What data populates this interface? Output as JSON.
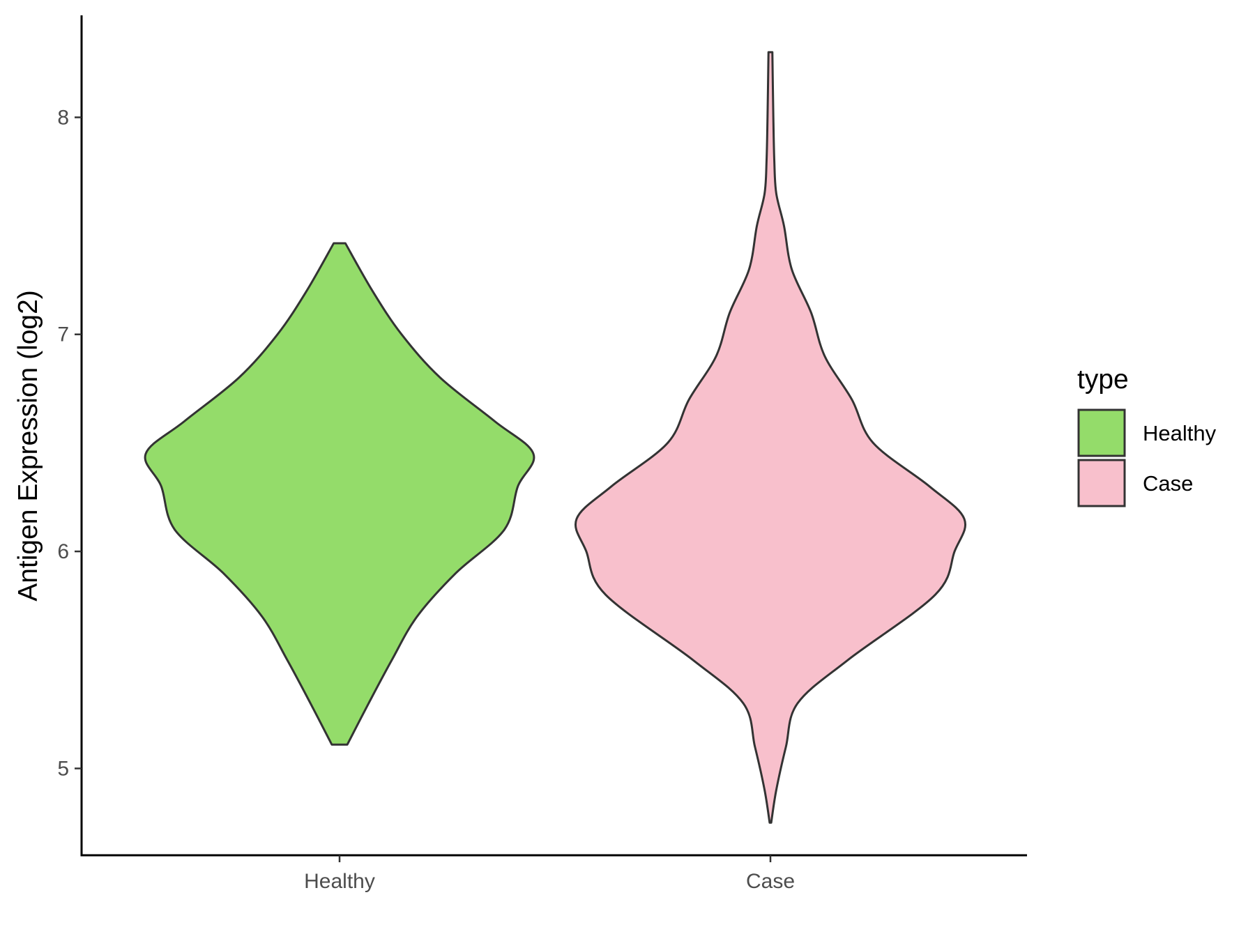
{
  "chart_data": {
    "type": "violin",
    "title": "",
    "xlabel": "",
    "ylabel": "Antigen Expression (log2)",
    "ylim": [
      4.6,
      8.47
    ],
    "yticks": [
      5,
      6,
      7,
      8
    ],
    "ytick_labels": [
      "5",
      "6",
      "7",
      "8"
    ],
    "categories": [
      "Healthy",
      "Case"
    ],
    "grid": false,
    "legend": {
      "title": "type",
      "position": "right",
      "entries": [
        "Healthy",
        "Case"
      ]
    },
    "series": [
      {
        "name": "Healthy",
        "color": "#94dc6a",
        "min": 5.11,
        "max": 7.42,
        "profile": [
          [
            5.11,
            0.04
          ],
          [
            5.3,
            0.15
          ],
          [
            5.5,
            0.27
          ],
          [
            5.7,
            0.4
          ],
          [
            5.9,
            0.6
          ],
          [
            6.1,
            0.85
          ],
          [
            6.3,
            0.92
          ],
          [
            6.45,
            1.0
          ],
          [
            6.6,
            0.8
          ],
          [
            6.8,
            0.52
          ],
          [
            7.0,
            0.32
          ],
          [
            7.2,
            0.17
          ],
          [
            7.42,
            0.03
          ]
        ]
      },
      {
        "name": "Case",
        "color": "#f8c0cc",
        "min": 4.75,
        "max": 8.3,
        "profile": [
          [
            4.75,
            0.004
          ],
          [
            4.9,
            0.03
          ],
          [
            5.1,
            0.08
          ],
          [
            5.3,
            0.14
          ],
          [
            5.5,
            0.4
          ],
          [
            5.8,
            0.85
          ],
          [
            6.0,
            0.95
          ],
          [
            6.15,
            1.0
          ],
          [
            6.3,
            0.82
          ],
          [
            6.5,
            0.53
          ],
          [
            6.7,
            0.42
          ],
          [
            6.9,
            0.28
          ],
          [
            7.1,
            0.21
          ],
          [
            7.3,
            0.11
          ],
          [
            7.5,
            0.07
          ],
          [
            7.65,
            0.03
          ],
          [
            7.8,
            0.02
          ],
          [
            8.0,
            0.015
          ],
          [
            8.3,
            0.01
          ]
        ]
      }
    ]
  }
}
